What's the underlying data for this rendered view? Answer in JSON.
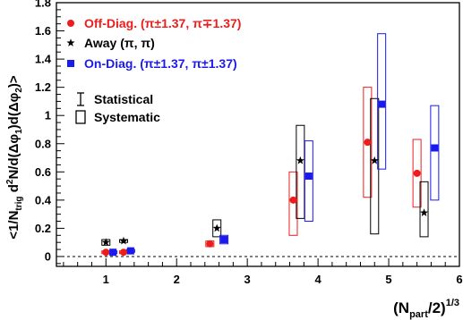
{
  "chart_data": {
    "type": "scatter",
    "title": "",
    "xlabel_main": "(N",
    "xlabel_sub": "part",
    "xlabel_tail": "/2)",
    "xlabel_sup": "1/3",
    "ylabel_parts": {
      "a": "<1/N",
      "a_sub": "trig",
      "b": " d",
      "b_sup": "2",
      "c": "N/d(Δφ",
      "c_sub": "1",
      "d": ")d(Δφ",
      "d_sub": "2",
      "e": ")>"
    },
    "xlim": [
      0.3,
      6.0
    ],
    "ylim": [
      -0.07,
      1.8
    ],
    "xticks": [
      1,
      2,
      3,
      4,
      5,
      6
    ],
    "yticks": [
      0,
      0.2,
      0.4,
      0.6,
      0.8,
      1,
      1.2,
      1.4,
      1.6,
      1.8
    ],
    "ytick_labels": [
      "0",
      "0.2",
      "0.4",
      "0.6",
      "0.8",
      "1",
      "1.2",
      "1.4",
      "1.6",
      "1.8"
    ],
    "zero_line": true,
    "legend_placement": "top-left",
    "series": [
      {
        "name": "Off-Diag. (π±1.37, π∓1.37)",
        "legend_label": "Off-Diag.",
        "legend_math": "(π±1.37, π∓1.37)",
        "marker": "circle",
        "color": "#ee1c1c",
        "points": [
          {
            "x": 1.0,
            "y": 0.03,
            "sys_lo": 0.02,
            "sys_hi": 0.04
          },
          {
            "x": 1.25,
            "y": 0.03,
            "sys_lo": 0.02,
            "sys_hi": 0.04
          },
          {
            "x": 2.47,
            "y": 0.09,
            "sys_lo": 0.07,
            "sys_hi": 0.11
          },
          {
            "x": 3.65,
            "y": 0.4,
            "sys_lo": 0.15,
            "sys_hi": 0.6
          },
          {
            "x": 4.7,
            "y": 0.81,
            "sys_lo": 0.42,
            "sys_hi": 1.2
          },
          {
            "x": 5.4,
            "y": 0.59,
            "sys_lo": 0.35,
            "sys_hi": 0.83
          }
        ]
      },
      {
        "name": "Away (π, π)",
        "legend_label": "Away",
        "legend_math": "(π, π)",
        "marker": "star",
        "color": "#000000",
        "points": [
          {
            "x": 1.0,
            "y": 0.1,
            "sys_lo": 0.08,
            "sys_hi": 0.12
          },
          {
            "x": 1.25,
            "y": 0.11,
            "sys_lo": 0.1,
            "sys_hi": 0.12
          },
          {
            "x": 2.57,
            "y": 0.2,
            "sys_lo": 0.14,
            "sys_hi": 0.26
          },
          {
            "x": 3.75,
            "y": 0.68,
            "sys_lo": 0.27,
            "sys_hi": 0.93
          },
          {
            "x": 4.8,
            "y": 0.68,
            "sys_lo": 0.16,
            "sys_hi": 1.12
          },
          {
            "x": 5.5,
            "y": 0.31,
            "sys_lo": 0.14,
            "sys_hi": 0.53
          }
        ]
      },
      {
        "name": "On-Diag. (π±1.37, π±1.37)",
        "legend_label": "On-Diag.",
        "legend_math": "(π±1.37, π±1.37)",
        "marker": "square",
        "color": "#1a1aee",
        "points": [
          {
            "x": 1.1,
            "y": 0.03,
            "sys_lo": 0.02,
            "sys_hi": 0.04
          },
          {
            "x": 1.35,
            "y": 0.04,
            "sys_lo": 0.03,
            "sys_hi": 0.05
          },
          {
            "x": 2.67,
            "y": 0.12,
            "sys_lo": 0.09,
            "sys_hi": 0.15
          },
          {
            "x": 3.87,
            "y": 0.57,
            "sys_lo": 0.25,
            "sys_hi": 0.82
          },
          {
            "x": 4.9,
            "y": 1.08,
            "sys_lo": 0.62,
            "sys_hi": 1.58
          },
          {
            "x": 5.65,
            "y": 0.77,
            "sys_lo": 0.4,
            "sys_hi": 1.07
          }
        ]
      }
    ],
    "error_legend": [
      {
        "label": "Statistical",
        "glyph": "bar"
      },
      {
        "label": "Systematic",
        "glyph": "box"
      }
    ]
  }
}
